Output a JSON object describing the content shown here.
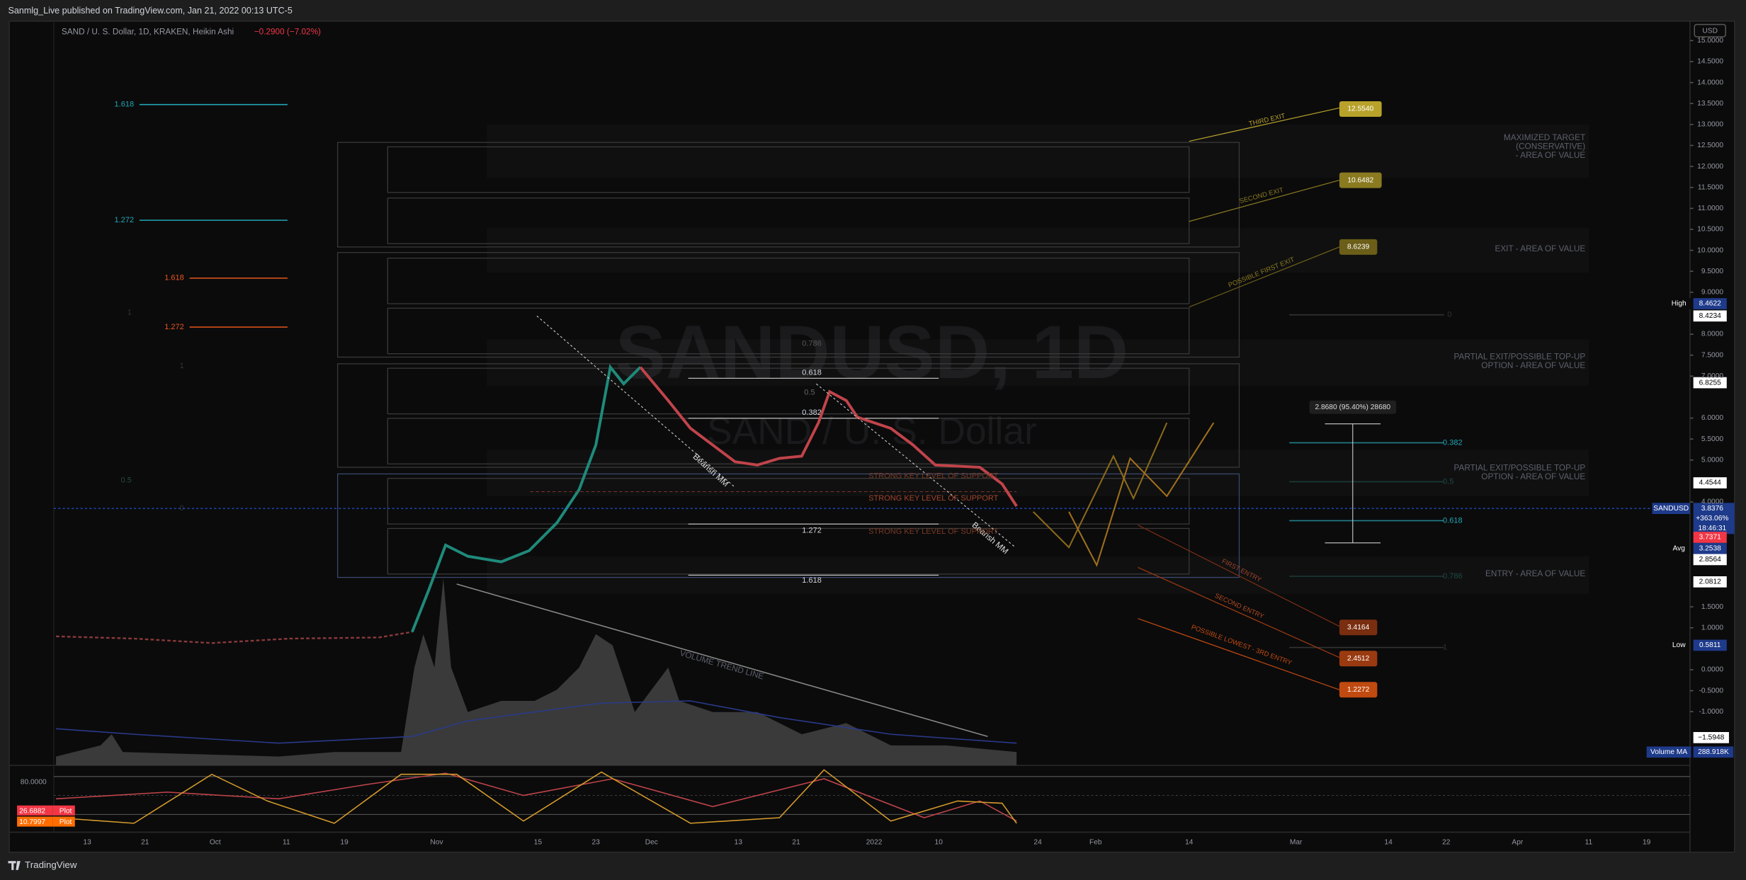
{
  "header": {
    "publisher": "Sanmlg_Live published on TradingView.com, Jan 21, 2022 00:13 UTC-5",
    "brand": "TradingView"
  },
  "legend": {
    "symbol": "SAND / U. S. Dollar, 1D, KRAKEN, Heikin Ashi",
    "change": "−0.2900 (−7.02%)"
  },
  "watermark": {
    "line1": "SANDUSD, 1D",
    "line2": "SAND / U. S. Dollar"
  },
  "price_axis": {
    "currency": "USD",
    "ticks": [
      {
        "value": 15,
        "label": "15.0000"
      },
      {
        "value": 14.5,
        "label": "14.5000"
      },
      {
        "value": 14,
        "label": "14.0000"
      },
      {
        "value": 13.5,
        "label": "13.5000"
      },
      {
        "value": 13,
        "label": "13.0000"
      },
      {
        "value": 12.5,
        "label": "12.5000"
      },
      {
        "value": 12,
        "label": "12.0000"
      },
      {
        "value": 11.5,
        "label": "11.5000"
      },
      {
        "value": 11,
        "label": "11.0000"
      },
      {
        "value": 10.5,
        "label": "10.5000"
      },
      {
        "value": 10,
        "label": "10.0000"
      },
      {
        "value": 9.5,
        "label": "9.5000"
      },
      {
        "value": 9,
        "label": "9.0000"
      },
      {
        "value": 8,
        "label": "8.0000"
      },
      {
        "value": 7.5,
        "label": "7.5000"
      },
      {
        "value": 7,
        "label": "7.0000"
      },
      {
        "value": 6,
        "label": "6.0000"
      },
      {
        "value": 5.5,
        "label": "5.5000"
      },
      {
        "value": 5,
        "label": "5.0000"
      },
      {
        "value": 4,
        "label": "4.0000"
      },
      {
        "value": 1.5,
        "label": "1.5000"
      },
      {
        "value": 1,
        "label": "1.0000"
      },
      {
        "value": 0,
        "label": "0.0000"
      },
      {
        "value": -0.5,
        "label": "-0.5000"
      },
      {
        "value": -1,
        "label": "-1.0000"
      }
    ]
  },
  "price_badges": {
    "high_label": "High",
    "high": "8.4622",
    "p1": "8.4234",
    "p2": "6.8255",
    "p3": "4.4544",
    "symbol": "SANDUSD",
    "last": "3.8376",
    "last_change": "+363.06%",
    "countdown": "18:46:31",
    "p4": "3.7371",
    "avg_label": "Avg",
    "avg": "3.2538",
    "p5": "2.8564",
    "p6": "2.0812",
    "low_label": "Low",
    "low": "0.5811",
    "p7": "−1.5948",
    "vol_ma_label": "Volume MA",
    "vol_ma": "288.918K"
  },
  "time_axis": [
    "13",
    "21",
    "Oct",
    "11",
    "19",
    "Nov",
    "15",
    "23",
    "Dec",
    "13",
    "21",
    "2022",
    "10",
    "24",
    "Feb",
    "14",
    "Mar",
    "14",
    "22",
    "Apr",
    "11",
    "19"
  ],
  "fib_left": [
    "1.618",
    "1.272",
    "1.618",
    "1.272",
    "1",
    "1",
    "0.5",
    "0"
  ],
  "fib_mid": [
    "0.786",
    "0.618",
    "0.5",
    "0.382",
    "1.272",
    "1.618"
  ],
  "fib_right": [
    "0",
    "0.382",
    "0.5",
    "0.618",
    "0.786",
    "1"
  ],
  "zones": {
    "maximized": [
      "MAXIMIZED TARGET",
      "(CONSERVATIVE)",
      "- AREA OF VALUE"
    ],
    "exit": "EXIT - AREA OF VALUE",
    "partial1": [
      "PARTIAL EXIT/POSSIBLE TOP-UP",
      "OPTION - AREA OF VALUE"
    ],
    "partial2": [
      "PARTIAL EXIT/POSSIBLE TOP-UP",
      "OPTION - AREA OF VALUE"
    ],
    "entry": "ENTRY - AREA OF VALUE"
  },
  "targets": {
    "third_exit": "THIRD EXIT",
    "third_exit_price": "12.5540",
    "second_exit": "SECOND EXIT",
    "second_exit_price": "10.6482",
    "first_exit": "POSSIBLE FIRST EXIT",
    "first_exit_price": "8.6239",
    "first_entry": "FIRST ENTRY",
    "first_entry_price": "3.4164",
    "second_entry": "SECOND ENTRY",
    "second_entry_price": "2.4512",
    "third_entry": "POSSIBLE LOWEST - 3RD ENTRY",
    "third_entry_price": "1.2272"
  },
  "notes": {
    "support": [
      "STRONG KEY LEVEL OF SUPPORT",
      "STRONG KEY LEVEL OF SUPPORT",
      "STRONG KEY LEVEL OF SUPPORT"
    ],
    "bearish": [
      "Bearish MM",
      "Bearish MM"
    ],
    "volume_trend": "VOLUME TREND LINE",
    "measure": "2.8680 (95.40%) 28680"
  },
  "oscillator": {
    "level": "80.0000",
    "plot1": "26.6882",
    "plot1_label": "Plot",
    "plot2": "10.7997",
    "plot2_label": "Plot"
  }
}
